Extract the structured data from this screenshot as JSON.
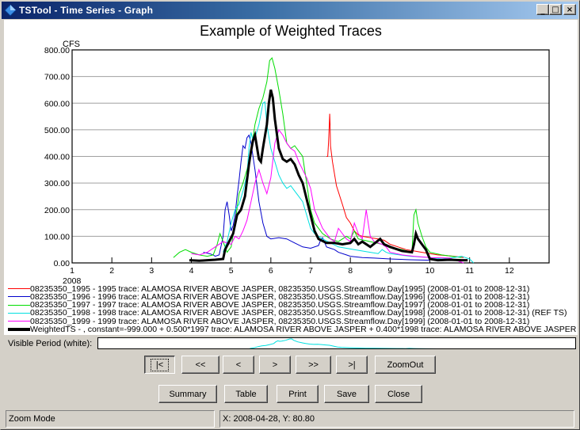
{
  "window": {
    "title": "TSTool - Time Series - Graph",
    "icon": "tstool-diamond-icon",
    "controls": {
      "minimize": "_",
      "maximize": "□",
      "close": "×"
    }
  },
  "chart_data": {
    "type": "line",
    "title": "Example of Weighted Traces",
    "ylabel": "CFS",
    "xlabel": "",
    "x_year_label": "2008",
    "ylim": [
      0,
      800
    ],
    "xlim": [
      1,
      13
    ],
    "grid": true,
    "y_ticks": [
      "0.00",
      "100.00",
      "200.00",
      "300.00",
      "400.00",
      "500.00",
      "600.00",
      "700.00",
      "800.00"
    ],
    "x_ticks": [
      "1",
      "2",
      "3",
      "4",
      "5",
      "6",
      "7",
      "8",
      "9",
      "10",
      "11",
      "12"
    ],
    "legend_position": "bottom",
    "series": [
      {
        "name": "08235350_1995 - 1995 trace: ALAMOSA RIVER ABOVE JASPER, 08235350.USGS.Streamflow.Day[1995] (2008-01-01 to 2008-12-31)",
        "color": "#ff0000",
        "width": 1,
        "points": [
          [
            7.4,
            400
          ],
          [
            7.43,
            400
          ],
          [
            7.45,
            450
          ],
          [
            7.47,
            520
          ],
          [
            7.48,
            560
          ],
          [
            7.49,
            520
          ],
          [
            7.5,
            440
          ],
          [
            7.55,
            380
          ],
          [
            7.65,
            290
          ],
          [
            7.8,
            220
          ],
          [
            7.9,
            170
          ],
          [
            8.0,
            150
          ],
          [
            8.1,
            120
          ],
          [
            8.2,
            105
          ],
          [
            8.3,
            100
          ],
          [
            8.5,
            95
          ],
          [
            8.7,
            90
          ],
          [
            8.85,
            85
          ],
          [
            9.0,
            70
          ],
          [
            9.2,
            60
          ],
          [
            9.4,
            50
          ],
          [
            9.6,
            45
          ],
          [
            9.8,
            40
          ],
          [
            10.0,
            35
          ],
          [
            10.2,
            30
          ],
          [
            10.4,
            28
          ],
          [
            10.6,
            25
          ],
          [
            10.85,
            20
          ]
        ]
      },
      {
        "name": "08235350_1996 - 1996 trace: ALAMOSA RIVER ABOVE JASPER, 08235350.USGS.Streamflow.Day[1996] (2008-01-01 to 2008-12-31)",
        "color": "#0000cc",
        "width": 1,
        "points": [
          [
            4.3,
            40
          ],
          [
            4.45,
            35
          ],
          [
            4.55,
            30
          ],
          [
            4.6,
            25
          ],
          [
            4.7,
            30
          ],
          [
            4.8,
            100
          ],
          [
            4.85,
            200
          ],
          [
            4.9,
            230
          ],
          [
            4.95,
            180
          ],
          [
            5.0,
            120
          ],
          [
            5.05,
            140
          ],
          [
            5.1,
            180
          ],
          [
            5.15,
            250
          ],
          [
            5.2,
            310
          ],
          [
            5.25,
            380
          ],
          [
            5.3,
            440
          ],
          [
            5.35,
            430
          ],
          [
            5.4,
            470
          ],
          [
            5.45,
            480
          ],
          [
            5.5,
            450
          ],
          [
            5.6,
            350
          ],
          [
            5.7,
            230
          ],
          [
            5.8,
            150
          ],
          [
            5.9,
            100
          ],
          [
            6.0,
            90
          ],
          [
            6.2,
            95
          ],
          [
            6.4,
            90
          ],
          [
            6.6,
            75
          ],
          [
            6.8,
            60
          ],
          [
            7.0,
            55
          ],
          [
            7.2,
            65
          ],
          [
            7.25,
            85
          ],
          [
            7.3,
            95
          ],
          [
            7.4,
            60
          ],
          [
            7.5,
            55
          ],
          [
            7.6,
            50
          ],
          [
            7.7,
            40
          ],
          [
            7.9,
            30
          ],
          [
            8.0,
            25
          ],
          [
            8.3,
            20
          ],
          [
            8.6,
            18
          ],
          [
            9.0,
            15
          ],
          [
            9.5,
            12
          ],
          [
            10.0,
            10
          ]
        ]
      },
      {
        "name": "08235350_1997 - 1997 trace: ALAMOSA RIVER ABOVE JASPER, 08235350.USGS.Streamflow.Day[1997] (2008-01-01 to 2008-12-31)",
        "color": "#00dd00",
        "width": 1,
        "points": [
          [
            3.55,
            20
          ],
          [
            3.7,
            40
          ],
          [
            3.85,
            50
          ],
          [
            4.0,
            40
          ],
          [
            4.2,
            30
          ],
          [
            4.4,
            25
          ],
          [
            4.55,
            30
          ],
          [
            4.65,
            70
          ],
          [
            4.72,
            110
          ],
          [
            4.8,
            80
          ],
          [
            4.9,
            40
          ],
          [
            5.0,
            60
          ],
          [
            5.1,
            150
          ],
          [
            5.2,
            260
          ],
          [
            5.3,
            300
          ],
          [
            5.4,
            350
          ],
          [
            5.5,
            420
          ],
          [
            5.6,
            520
          ],
          [
            5.7,
            580
          ],
          [
            5.8,
            620
          ],
          [
            5.9,
            680
          ],
          [
            5.97,
            760
          ],
          [
            6.03,
            770
          ],
          [
            6.1,
            730
          ],
          [
            6.2,
            650
          ],
          [
            6.3,
            560
          ],
          [
            6.4,
            450
          ],
          [
            6.5,
            430
          ],
          [
            6.6,
            440
          ],
          [
            6.7,
            420
          ],
          [
            6.8,
            400
          ],
          [
            6.9,
            300
          ],
          [
            7.0,
            200
          ],
          [
            7.1,
            150
          ],
          [
            7.3,
            110
          ],
          [
            7.5,
            90
          ],
          [
            7.7,
            80
          ],
          [
            7.9,
            100
          ],
          [
            8.0,
            90
          ],
          [
            8.1,
            120
          ],
          [
            8.2,
            90
          ],
          [
            8.5,
            80
          ],
          [
            8.8,
            70
          ],
          [
            9.0,
            60
          ],
          [
            9.3,
            50
          ],
          [
            9.55,
            40
          ],
          [
            9.6,
            180
          ],
          [
            9.65,
            200
          ],
          [
            9.7,
            150
          ],
          [
            9.8,
            100
          ],
          [
            9.9,
            60
          ],
          [
            10.0,
            40
          ],
          [
            10.3,
            30
          ],
          [
            10.8,
            20
          ]
        ]
      },
      {
        "name": "08235350_1998 - 1998 trace: ALAMOSA RIVER ABOVE JASPER, 08235350.USGS.Streamflow.Day[1998] (2008-01-01 to 2008-12-31)  (REF TS)",
        "color": "#00e0e0",
        "width": 1,
        "points": [
          [
            4.8,
            40
          ],
          [
            4.9,
            80
          ],
          [
            5.0,
            150
          ],
          [
            5.1,
            200
          ],
          [
            5.2,
            220
          ],
          [
            5.3,
            270
          ],
          [
            5.4,
            330
          ],
          [
            5.45,
            430
          ],
          [
            5.5,
            490
          ],
          [
            5.55,
            460
          ],
          [
            5.6,
            470
          ],
          [
            5.7,
            520
          ],
          [
            5.8,
            600
          ],
          [
            5.85,
            605
          ],
          [
            5.9,
            520
          ],
          [
            6.0,
            430
          ],
          [
            6.1,
            380
          ],
          [
            6.2,
            330
          ],
          [
            6.3,
            300
          ],
          [
            6.4,
            280
          ],
          [
            6.5,
            290
          ],
          [
            6.6,
            270
          ],
          [
            6.7,
            250
          ],
          [
            6.8,
            230
          ],
          [
            6.9,
            180
          ],
          [
            7.0,
            130
          ],
          [
            7.1,
            110
          ],
          [
            7.3,
            90
          ],
          [
            7.5,
            75
          ],
          [
            7.7,
            60
          ],
          [
            7.9,
            55
          ],
          [
            8.1,
            50
          ],
          [
            8.5,
            40
          ],
          [
            8.7,
            35
          ],
          [
            8.8,
            50
          ],
          [
            8.9,
            40
          ],
          [
            9.0,
            35
          ],
          [
            9.5,
            25
          ],
          [
            10.0,
            20
          ],
          [
            10.3,
            15
          ],
          [
            10.6,
            20
          ],
          [
            10.8,
            25
          ],
          [
            11.0,
            15
          ],
          [
            11.1,
            0
          ]
        ]
      },
      {
        "name": "08235350_1999 - 1999 trace: ALAMOSA RIVER ABOVE JASPER, 08235350.USGS.Streamflow.Day[1999] (2008-01-01 to 2008-12-31)",
        "color": "#ff00ff",
        "width": 1,
        "points": [
          [
            4.0,
            35
          ],
          [
            4.2,
            30
          ],
          [
            4.4,
            40
          ],
          [
            4.6,
            60
          ],
          [
            4.8,
            80
          ],
          [
            5.0,
            70
          ],
          [
            5.1,
            100
          ],
          [
            5.2,
            90
          ],
          [
            5.3,
            120
          ],
          [
            5.4,
            160
          ],
          [
            5.5,
            230
          ],
          [
            5.6,
            300
          ],
          [
            5.7,
            350
          ],
          [
            5.8,
            300
          ],
          [
            5.9,
            260
          ],
          [
            6.0,
            320
          ],
          [
            6.1,
            450
          ],
          [
            6.2,
            500
          ],
          [
            6.3,
            480
          ],
          [
            6.4,
            450
          ],
          [
            6.5,
            430
          ],
          [
            6.6,
            420
          ],
          [
            6.7,
            380
          ],
          [
            6.8,
            350
          ],
          [
            6.9,
            320
          ],
          [
            7.0,
            280
          ],
          [
            7.1,
            200
          ],
          [
            7.3,
            130
          ],
          [
            7.5,
            90
          ],
          [
            7.6,
            80
          ],
          [
            7.7,
            130
          ],
          [
            7.8,
            110
          ],
          [
            7.9,
            90
          ],
          [
            8.0,
            80
          ],
          [
            8.1,
            150
          ],
          [
            8.2,
            110
          ],
          [
            8.3,
            90
          ],
          [
            8.4,
            200
          ],
          [
            8.45,
            150
          ],
          [
            8.5,
            100
          ],
          [
            8.6,
            80
          ],
          [
            8.8,
            70
          ],
          [
            8.9,
            60
          ],
          [
            9.0,
            40
          ],
          [
            9.3,
            30
          ],
          [
            9.6,
            25
          ],
          [
            10.0,
            20
          ],
          [
            10.5,
            18
          ],
          [
            10.85,
            0
          ]
        ]
      },
      {
        "name": "WeightedTS - , constant=-999.000 + 0.500*1997 trace: ALAMOSA RIVER ABOVE JASPER + 0.400*1998 trace: ALAMOSA RIVER ABOVE JASPER",
        "color": "#000000",
        "width": 3,
        "points": [
          [
            3.95,
            10
          ],
          [
            4.2,
            8
          ],
          [
            4.4,
            10
          ],
          [
            4.6,
            12
          ],
          [
            4.8,
            15
          ],
          [
            4.85,
            50
          ],
          [
            4.95,
            80
          ],
          [
            5.05,
            110
          ],
          [
            5.15,
            180
          ],
          [
            5.25,
            200
          ],
          [
            5.35,
            250
          ],
          [
            5.45,
            370
          ],
          [
            5.5,
            420
          ],
          [
            5.55,
            460
          ],
          [
            5.6,
            480
          ],
          [
            5.7,
            390
          ],
          [
            5.75,
            380
          ],
          [
            5.8,
            430
          ],
          [
            5.9,
            520
          ],
          [
            5.95,
            600
          ],
          [
            6.0,
            650
          ],
          [
            6.05,
            620
          ],
          [
            6.1,
            540
          ],
          [
            6.2,
            430
          ],
          [
            6.3,
            390
          ],
          [
            6.4,
            380
          ],
          [
            6.5,
            390
          ],
          [
            6.6,
            370
          ],
          [
            6.7,
            330
          ],
          [
            6.8,
            300
          ],
          [
            6.9,
            240
          ],
          [
            7.0,
            180
          ],
          [
            7.1,
            120
          ],
          [
            7.2,
            90
          ],
          [
            7.4,
            75
          ],
          [
            7.6,
            75
          ],
          [
            7.8,
            70
          ],
          [
            8.0,
            75
          ],
          [
            8.1,
            90
          ],
          [
            8.2,
            70
          ],
          [
            8.3,
            80
          ],
          [
            8.5,
            60
          ],
          [
            8.75,
            90
          ],
          [
            8.85,
            70
          ],
          [
            9.0,
            60
          ],
          [
            9.3,
            45
          ],
          [
            9.55,
            40
          ],
          [
            9.6,
            70
          ],
          [
            9.65,
            110
          ],
          [
            9.7,
            90
          ],
          [
            9.8,
            70
          ],
          [
            9.9,
            50
          ],
          [
            10.0,
            15
          ],
          [
            10.2,
            10
          ],
          [
            10.5,
            12
          ],
          [
            10.8,
            10
          ],
          [
            10.95,
            10
          ]
        ]
      }
    ]
  },
  "visible_period": {
    "label": "Visible Period (white):"
  },
  "nav_buttons": [
    {
      "label": "|<",
      "name": "first-period-button",
      "focused": true
    },
    {
      "label": "<<",
      "name": "back-page-button"
    },
    {
      "label": "<",
      "name": "back-step-button"
    },
    {
      "label": ">",
      "name": "forward-step-button"
    },
    {
      "label": ">>",
      "name": "forward-page-button"
    },
    {
      "label": ">|",
      "name": "last-period-button"
    },
    {
      "label": "ZoomOut",
      "name": "zoom-out-button"
    }
  ],
  "action_buttons": [
    {
      "label": "Summary",
      "name": "summary-button"
    },
    {
      "label": "Table",
      "name": "table-button"
    },
    {
      "label": "Print",
      "name": "print-button"
    },
    {
      "label": "Save",
      "name": "save-button"
    },
    {
      "label": "Close",
      "name": "close-button"
    }
  ],
  "status": {
    "mode": "Zoom Mode",
    "coordinates": "X:  2008-04-28,  Y:  80.80"
  }
}
